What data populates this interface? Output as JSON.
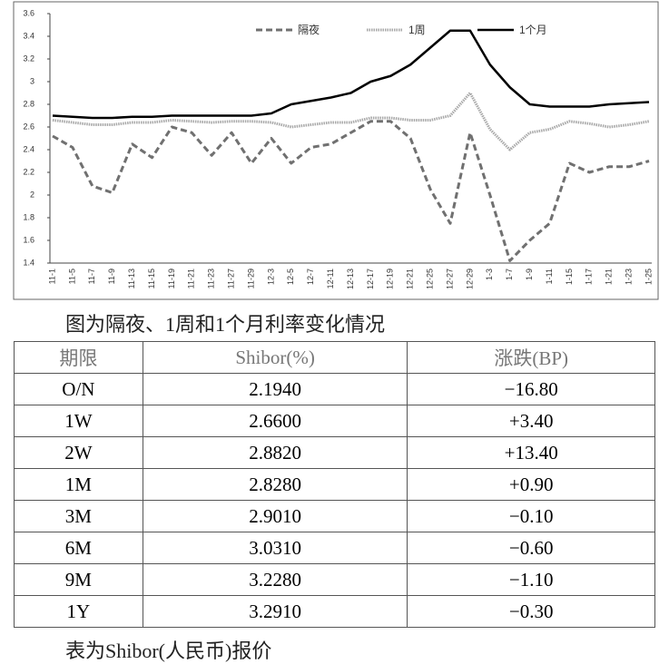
{
  "chart_data": {
    "type": "line",
    "categories": [
      "11-1",
      "11-5",
      "11-7",
      "11-9",
      "11-13",
      "11-15",
      "11-19",
      "11-21",
      "11-23",
      "11-27",
      "11-29",
      "12-3",
      "12-5",
      "12-7",
      "12-11",
      "12-13",
      "12-17",
      "12-19",
      "12-21",
      "12-25",
      "12-27",
      "12-29",
      "1-3",
      "1-7",
      "1-9",
      "1-11",
      "1-15",
      "1-17",
      "1-21",
      "1-23",
      "1-25"
    ],
    "series": [
      {
        "name": "隔夜",
        "color": "#707070",
        "line_style": "dashed",
        "values": [
          2.52,
          2.42,
          2.08,
          2.02,
          2.45,
          2.33,
          2.6,
          2.55,
          2.35,
          2.55,
          2.28,
          2.5,
          2.28,
          2.42,
          2.45,
          2.55,
          2.65,
          2.65,
          2.5,
          2.05,
          1.75,
          2.55,
          2.0,
          1.42,
          1.6,
          1.75,
          2.28,
          2.2,
          2.25,
          2.25,
          2.3
        ]
      },
      {
        "name": "1周",
        "color": "#a8a8a8",
        "line_style": "dotted",
        "values": [
          2.66,
          2.64,
          2.62,
          2.62,
          2.64,
          2.64,
          2.66,
          2.65,
          2.64,
          2.65,
          2.65,
          2.64,
          2.6,
          2.62,
          2.64,
          2.64,
          2.68,
          2.68,
          2.66,
          2.66,
          2.7,
          2.9,
          2.58,
          2.4,
          2.55,
          2.58,
          2.65,
          2.63,
          2.6,
          2.62,
          2.65
        ]
      },
      {
        "name": "1个月",
        "color": "#000000",
        "line_style": "solid",
        "values": [
          2.7,
          2.69,
          2.68,
          2.68,
          2.69,
          2.69,
          2.7,
          2.7,
          2.7,
          2.7,
          2.7,
          2.72,
          2.8,
          2.83,
          2.86,
          2.9,
          3.0,
          3.05,
          3.15,
          3.3,
          3.45,
          3.45,
          3.15,
          2.95,
          2.8,
          2.78,
          2.78,
          2.78,
          2.8,
          2.81,
          2.82
        ]
      }
    ],
    "ylim": [
      1.4,
      3.6
    ],
    "yticks": [
      1.4,
      1.6,
      1.8,
      2,
      2.2,
      2.4,
      2.6,
      2.8,
      3,
      3.2,
      3.4,
      3.6
    ],
    "legend": "top",
    "grid": false
  },
  "chart_caption": "图为隔夜、1周和1个月利率变化情况",
  "table": {
    "header": [
      "期限",
      "Shibor(%)",
      "涨跌(BP)"
    ],
    "rows": [
      [
        "O/N",
        "2.1940",
        "−16.80"
      ],
      [
        "1W",
        "2.6600",
        "+3.40"
      ],
      [
        "2W",
        "2.8820",
        "+13.40"
      ],
      [
        "1M",
        "2.8280",
        "+0.90"
      ],
      [
        "3M",
        "2.9010",
        "−0.10"
      ],
      [
        "6M",
        "3.0310",
        "−0.60"
      ],
      [
        "9M",
        "3.2280",
        "−1.10"
      ],
      [
        "1Y",
        "3.2910",
        "−0.30"
      ]
    ]
  },
  "table_caption": "表为Shibor(人民币)报价"
}
